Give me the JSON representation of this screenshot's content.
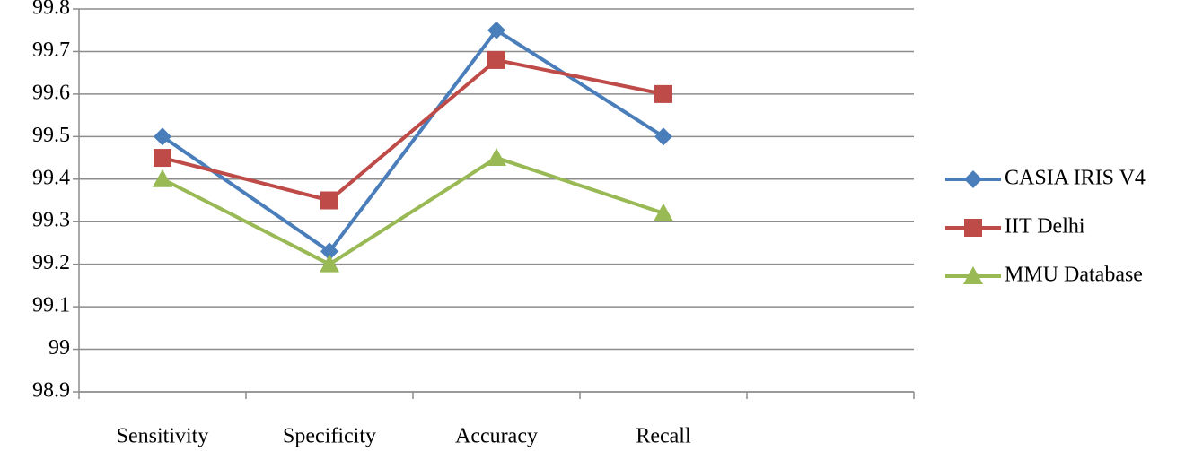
{
  "chart_data": {
    "type": "line",
    "categories": [
      "Sensitivity",
      "Specificity",
      "Accuracy",
      "Recall",
      null
    ],
    "series": [
      {
        "name": "CASIA IRIS V4",
        "color": "#4a7ebb",
        "marker": "diamond",
        "values": [
          99.5,
          99.23,
          99.75,
          99.5,
          null
        ]
      },
      {
        "name": "IIT Delhi",
        "color": "#be4b48",
        "marker": "square",
        "values": [
          99.45,
          99.35,
          99.68,
          99.6,
          null
        ]
      },
      {
        "name": "MMU Database",
        "color": "#98b954",
        "marker": "triangle",
        "values": [
          99.4,
          99.2,
          99.45,
          99.32,
          null
        ]
      }
    ],
    "ylim": [
      98.9,
      99.8
    ],
    "yticks": [
      98.9,
      99,
      99.1,
      99.2,
      99.3,
      99.4,
      99.5,
      99.6,
      99.7,
      99.8
    ],
    "grid": true,
    "legend": "right"
  }
}
